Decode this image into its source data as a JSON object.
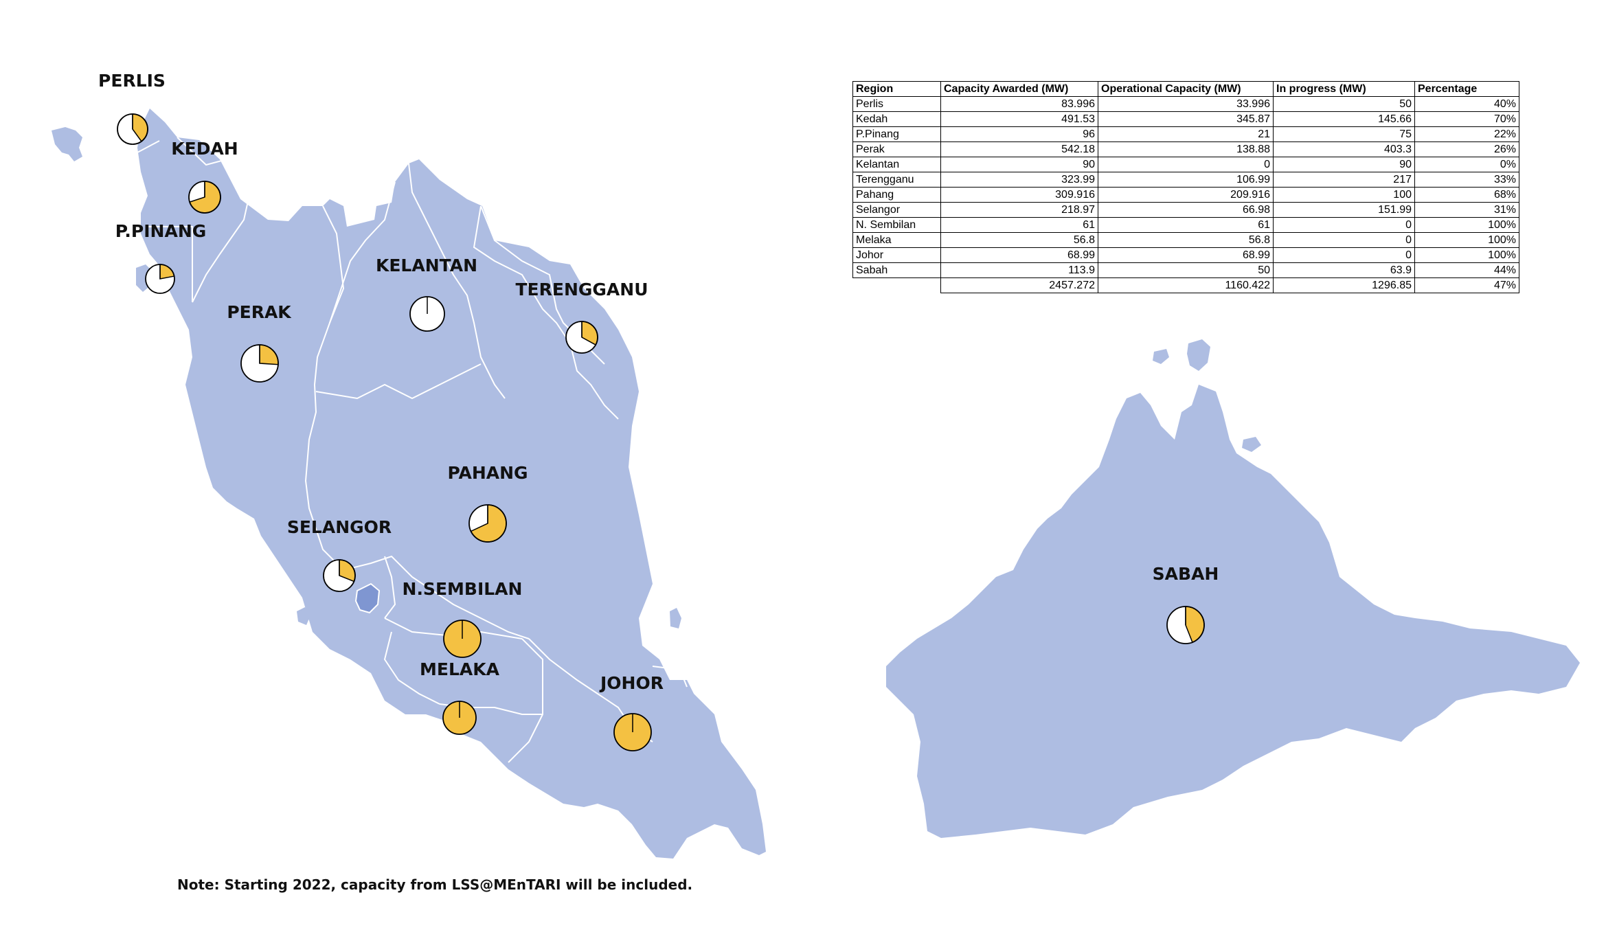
{
  "colors": {
    "land": "#aebde2",
    "lake": "#7f96d1",
    "border": "#ffffff",
    "pie_fill": "#f4c142",
    "pie_empty": "#ffffff"
  },
  "states": [
    {
      "id": "perlis",
      "label": "PERLIS",
      "pct": 0.4
    },
    {
      "id": "kedah",
      "label": "KEDAH",
      "pct": 0.7
    },
    {
      "id": "pinang",
      "label": "P.PINANG",
      "pct": 0.22
    },
    {
      "id": "perak",
      "label": "PERAK",
      "pct": 0.26
    },
    {
      "id": "kelantan",
      "label": "KELANTAN",
      "pct": 0.0
    },
    {
      "id": "terengganu",
      "label": "TERENGGANU",
      "pct": 0.33
    },
    {
      "id": "pahang",
      "label": "PAHANG",
      "pct": 0.68
    },
    {
      "id": "selangor",
      "label": "SELANGOR",
      "pct": 0.31
    },
    {
      "id": "nsembilan",
      "label": "N.SEMBILAN",
      "pct": 1.0
    },
    {
      "id": "melaka",
      "label": "MELAKA",
      "pct": 1.0
    },
    {
      "id": "johor",
      "label": "JOHOR",
      "pct": 1.0
    },
    {
      "id": "sabah",
      "label": "SABAH",
      "pct": 0.44
    }
  ],
  "table": {
    "headers": [
      "Region",
      "Capacity Awarded (MW)",
      "Operational Capacity (MW)",
      "In progress (MW)",
      "Percentage"
    ],
    "rows": [
      [
        "Perlis",
        "83.996",
        "33.996",
        "50",
        "40%"
      ],
      [
        "Kedah",
        "491.53",
        "345.87",
        "145.66",
        "70%"
      ],
      [
        "P.Pinang",
        "96",
        "21",
        "75",
        "22%"
      ],
      [
        "Perak",
        "542.18",
        "138.88",
        "403.3",
        "26%"
      ],
      [
        "Kelantan",
        "90",
        "0",
        "90",
        "0%"
      ],
      [
        "Terengganu",
        "323.99",
        "106.99",
        "217",
        "33%"
      ],
      [
        "Pahang",
        "309.916",
        "209.916",
        "100",
        "68%"
      ],
      [
        "Selangor",
        "218.97",
        "66.98",
        "151.99",
        "31%"
      ],
      [
        "N. Sembilan",
        "61",
        "61",
        "0",
        "100%"
      ],
      [
        "Melaka",
        "56.8",
        "56.8",
        "0",
        "100%"
      ],
      [
        "Johor",
        "68.99",
        "68.99",
        "0",
        "100%"
      ],
      [
        "Sabah",
        "113.9",
        "50",
        "63.9",
        "44%"
      ]
    ],
    "total": [
      "",
      "2457.272",
      "1160.422",
      "1296.85",
      "47%"
    ]
  },
  "note": "Note: Starting 2022, capacity from LSS@MEnTARI will be included."
}
